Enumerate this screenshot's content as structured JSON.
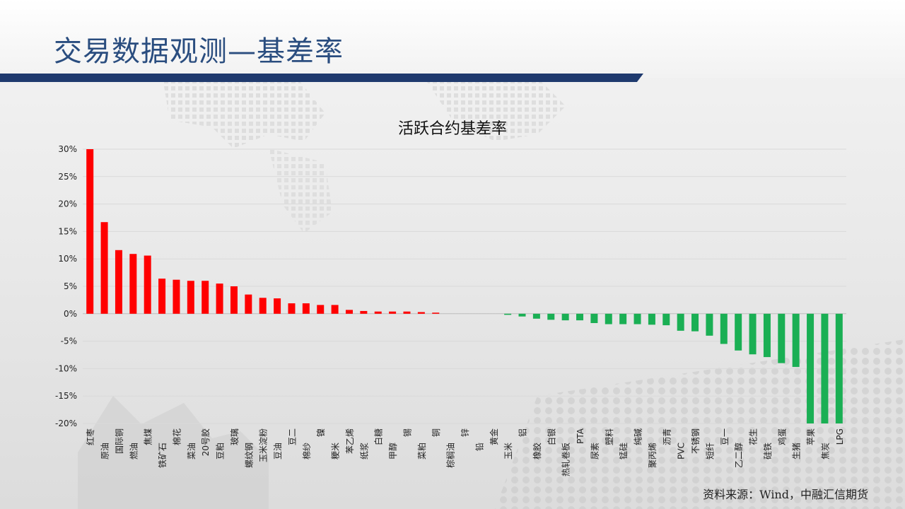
{
  "slide": {
    "title": "交易数据观测—基差率",
    "source": "资料来源：Wind，中融汇信期货"
  },
  "colors": {
    "title": "#2a4d7f",
    "title_bar": "#1f3a6e",
    "positive": "#ff0000",
    "negative": "#1aaf54"
  },
  "chart_data": {
    "type": "bar",
    "title": "活跃合约基差率",
    "xlabel": "",
    "ylabel": "",
    "ylim": [
      -20,
      30
    ],
    "yticks": [
      "30%",
      "25%",
      "20%",
      "15%",
      "10%",
      "5%",
      "0%",
      "-5%",
      "-10%",
      "-15%",
      "-20%"
    ],
    "ytick_values": [
      30,
      25,
      20,
      15,
      10,
      5,
      0,
      -5,
      -10,
      -15,
      -20
    ],
    "grid": true,
    "unit": "%",
    "categories": [
      "红枣",
      "原油",
      "国际铜",
      "燃油",
      "焦煤",
      "铁矿石",
      "棉花",
      "菜油",
      "20号胶",
      "豆粕",
      "玻璃",
      "螺纹钢",
      "玉米淀粉",
      "豆油",
      "豆二",
      "棉纱",
      "镍",
      "粳米",
      "苯乙烯",
      "纸浆",
      "白糖",
      "甲醇",
      "锡",
      "菜粕",
      "铜",
      "棕榈油",
      "锌",
      "铅",
      "黄金",
      "玉米",
      "铝",
      "橡胶",
      "白银",
      "热轧卷板",
      "PTA",
      "尿素",
      "塑料",
      "锰硅",
      "纯碱",
      "聚丙烯",
      "沥青",
      "PVC",
      "不锈钢",
      "短纤",
      "豆一",
      "乙二醇",
      "花生",
      "硅铁",
      "鸡蛋",
      "生猪",
      "苹果",
      "焦炭",
      "LPG"
    ],
    "values": [
      30.0,
      16.7,
      11.6,
      10.9,
      10.6,
      6.4,
      6.2,
      6.0,
      6.0,
      5.5,
      5.0,
      3.5,
      2.9,
      2.8,
      1.9,
      1.9,
      1.6,
      1.6,
      0.7,
      0.5,
      0.4,
      0.4,
      0.4,
      0.3,
      0.2,
      0.0,
      0.0,
      0.0,
      0.0,
      -0.2,
      -0.5,
      -0.9,
      -1.1,
      -1.2,
      -1.2,
      -1.7,
      -1.9,
      -1.9,
      -1.9,
      -2.0,
      -2.1,
      -3.1,
      -3.2,
      -4.0,
      -5.5,
      -6.7,
      -7.4,
      -7.9,
      -9.0,
      -9.7,
      -20.0,
      -20.0,
      -20.0
    ]
  }
}
